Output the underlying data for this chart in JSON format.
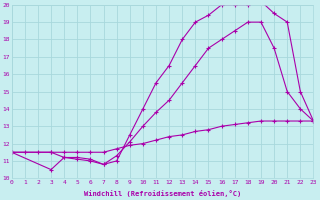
{
  "xlabel": "Windchill (Refroidissement éolien,°C)",
  "bg_color": "#c8eef0",
  "grid_color": "#a8d8dc",
  "line_color": "#aa00aa",
  "xlim": [
    0,
    23
  ],
  "ylim": [
    10,
    20
  ],
  "xticks": [
    0,
    1,
    2,
    3,
    4,
    5,
    6,
    7,
    8,
    9,
    10,
    11,
    12,
    13,
    14,
    15,
    16,
    17,
    18,
    19,
    20,
    21,
    22,
    23
  ],
  "yticks": [
    10,
    11,
    12,
    13,
    14,
    15,
    16,
    17,
    18,
    19,
    20
  ],
  "line1_x": [
    0,
    1,
    2,
    3,
    4,
    5,
    6,
    7,
    8,
    9,
    10,
    11,
    12,
    13,
    14,
    15,
    16,
    17,
    18,
    19,
    20,
    21,
    22,
    23
  ],
  "line1_y": [
    11.5,
    11.5,
    11.5,
    11.5,
    11.5,
    11.5,
    11.5,
    11.5,
    11.7,
    11.9,
    12.0,
    12.2,
    12.4,
    12.5,
    12.7,
    12.8,
    13.0,
    13.1,
    13.2,
    13.3,
    13.3,
    13.3,
    13.3,
    13.3
  ],
  "line2_x": [
    0,
    3,
    4,
    5,
    6,
    7,
    8,
    9,
    10,
    11,
    12,
    13,
    14,
    15,
    16,
    17,
    18,
    19,
    20,
    21,
    22,
    23
  ],
  "line2_y": [
    11.5,
    11.5,
    11.2,
    11.1,
    11.0,
    10.8,
    11.3,
    12.1,
    13.0,
    13.8,
    14.5,
    15.5,
    16.5,
    17.5,
    18.0,
    18.5,
    19.0,
    19.0,
    17.5,
    15.0,
    14.0,
    13.3
  ],
  "line3_x": [
    0,
    3,
    4,
    5,
    6,
    7,
    8,
    9,
    10,
    11,
    12,
    13,
    14,
    15,
    16,
    17,
    18,
    19,
    20,
    21,
    22,
    23
  ],
  "line3_y": [
    11.5,
    10.5,
    11.2,
    11.2,
    11.1,
    10.8,
    11.0,
    12.5,
    14.0,
    15.5,
    16.5,
    18.0,
    19.0,
    19.4,
    20.0,
    20.0,
    20.0,
    20.2,
    19.5,
    19.0,
    15.0,
    13.3
  ]
}
